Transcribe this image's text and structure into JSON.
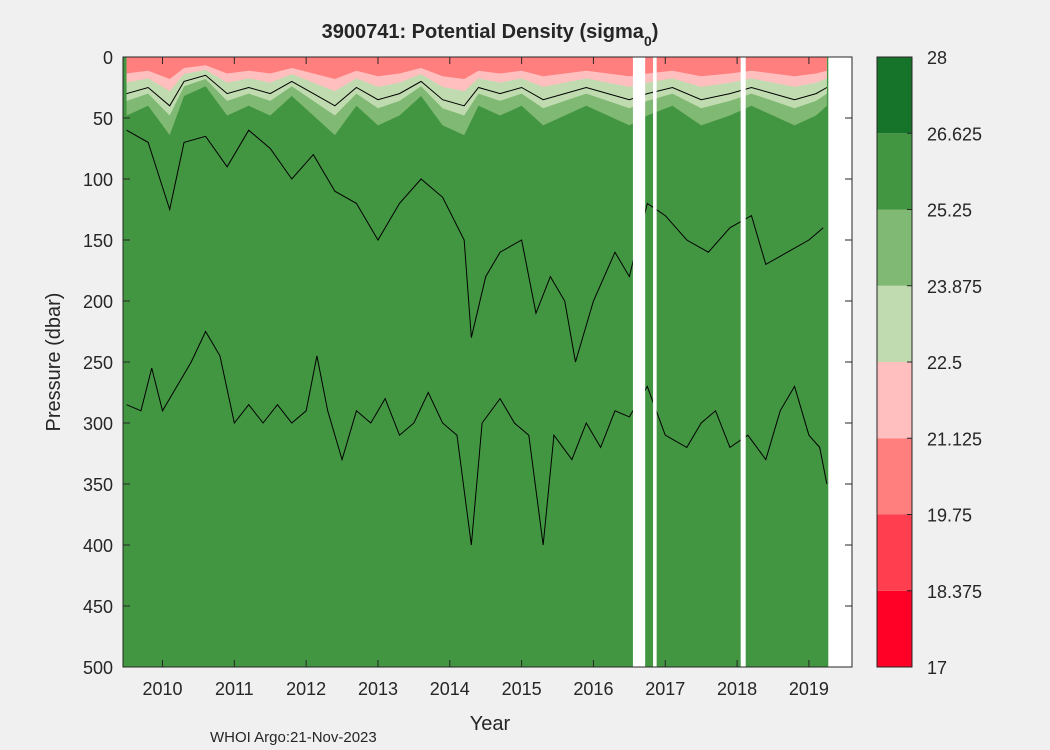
{
  "chart_data": {
    "type": "contour",
    "title": "3900741: Potential Density (sigma",
    "title_sub": "0",
    "title_end": ")",
    "xlabel": "Year",
    "ylabel": "Pressure (dbar)",
    "footer": "WHOI Argo:21-Nov-2023",
    "xlim": [
      2009.45,
      2019.6
    ],
    "ylim": [
      0,
      500
    ],
    "y_reversed": true,
    "x_ticks": [
      2010,
      2011,
      2012,
      2013,
      2014,
      2015,
      2016,
      2017,
      2018,
      2019
    ],
    "x_tick_labels": [
      "2010",
      "2011",
      "2012",
      "2013",
      "2014",
      "2015",
      "2016",
      "2017",
      "2018",
      "2019"
    ],
    "y_ticks": [
      0,
      50,
      100,
      150,
      200,
      250,
      300,
      350,
      400,
      450,
      500
    ],
    "y_tick_labels": [
      "0",
      "50",
      "100",
      "150",
      "200",
      "250",
      "300",
      "350",
      "400",
      "450",
      "500"
    ],
    "colorbar": {
      "levels": [
        17,
        18.375,
        19.75,
        21.125,
        22.5,
        23.875,
        25.25,
        26.625,
        28
      ],
      "labels": [
        "17",
        "18.375",
        "19.75",
        "21.125",
        "22.5",
        "23.875",
        "25.25",
        "26.625",
        "28"
      ],
      "colors": [
        "#ff0027",
        "#ff3f4f",
        "#ff7f7f",
        "#ffbfbf",
        "#c0dbb0",
        "#80b973",
        "#439641",
        "#16742a"
      ]
    },
    "gaps": [
      [
        2016.55,
        2016.72
      ],
      [
        2016.83,
        2016.88
      ],
      [
        2018.05,
        2018.12
      ],
      [
        2019.27,
        2019.6
      ]
    ],
    "contour_lines": [
      {
        "name": "mixed-layer-upper",
        "points": [
          [
            2009.5,
            30
          ],
          [
            2009.8,
            25
          ],
          [
            2010.1,
            40
          ],
          [
            2010.3,
            20
          ],
          [
            2010.6,
            15
          ],
          [
            2010.9,
            30
          ],
          [
            2011.2,
            25
          ],
          [
            2011.5,
            30
          ],
          [
            2011.8,
            20
          ],
          [
            2012.1,
            30
          ],
          [
            2012.4,
            40
          ],
          [
            2012.7,
            25
          ],
          [
            2013.0,
            35
          ],
          [
            2013.3,
            30
          ],
          [
            2013.6,
            20
          ],
          [
            2013.9,
            35
          ],
          [
            2014.2,
            40
          ],
          [
            2014.4,
            25
          ],
          [
            2014.7,
            30
          ],
          [
            2015.0,
            25
          ],
          [
            2015.3,
            35
          ],
          [
            2015.6,
            30
          ],
          [
            2015.9,
            25
          ],
          [
            2016.2,
            30
          ],
          [
            2016.5,
            35
          ],
          [
            2016.75,
            30
          ],
          [
            2017.1,
            25
          ],
          [
            2017.5,
            35
          ],
          [
            2017.9,
            30
          ],
          [
            2018.2,
            25
          ],
          [
            2018.5,
            30
          ],
          [
            2018.8,
            35
          ],
          [
            2019.1,
            30
          ],
          [
            2019.25,
            25
          ]
        ]
      },
      {
        "name": "thermocline-line",
        "points": [
          [
            2009.5,
            60
          ],
          [
            2009.8,
            70
          ],
          [
            2010.1,
            125
          ],
          [
            2010.3,
            70
          ],
          [
            2010.6,
            65
          ],
          [
            2010.9,
            90
          ],
          [
            2011.2,
            60
          ],
          [
            2011.5,
            75
          ],
          [
            2011.8,
            100
          ],
          [
            2012.1,
            80
          ],
          [
            2012.4,
            110
          ],
          [
            2012.7,
            120
          ],
          [
            2013.0,
            150
          ],
          [
            2013.3,
            120
          ],
          [
            2013.6,
            100
          ],
          [
            2013.9,
            115
          ],
          [
            2014.2,
            150
          ],
          [
            2014.3,
            230
          ],
          [
            2014.5,
            180
          ],
          [
            2014.7,
            160
          ],
          [
            2015.0,
            150
          ],
          [
            2015.2,
            210
          ],
          [
            2015.4,
            180
          ],
          [
            2015.6,
            200
          ],
          [
            2015.75,
            250
          ],
          [
            2016.0,
            200
          ],
          [
            2016.3,
            160
          ],
          [
            2016.5,
            180
          ],
          [
            2016.75,
            120
          ],
          [
            2017.0,
            130
          ],
          [
            2017.3,
            150
          ],
          [
            2017.6,
            160
          ],
          [
            2017.9,
            140
          ],
          [
            2018.2,
            130
          ],
          [
            2018.4,
            170
          ],
          [
            2018.7,
            160
          ],
          [
            2019.0,
            150
          ],
          [
            2019.2,
            140
          ]
        ]
      },
      {
        "name": "deep-isopycnal",
        "points": [
          [
            2009.5,
            285
          ],
          [
            2009.7,
            290
          ],
          [
            2009.85,
            255
          ],
          [
            2010.0,
            290
          ],
          [
            2010.2,
            270
          ],
          [
            2010.4,
            250
          ],
          [
            2010.6,
            225
          ],
          [
            2010.8,
            245
          ],
          [
            2011.0,
            300
          ],
          [
            2011.2,
            285
          ],
          [
            2011.4,
            300
          ],
          [
            2011.6,
            285
          ],
          [
            2011.8,
            300
          ],
          [
            2012.0,
            290
          ],
          [
            2012.15,
            245
          ],
          [
            2012.3,
            290
          ],
          [
            2012.5,
            330
          ],
          [
            2012.7,
            290
          ],
          [
            2012.9,
            300
          ],
          [
            2013.1,
            280
          ],
          [
            2013.3,
            310
          ],
          [
            2013.5,
            300
          ],
          [
            2013.7,
            275
          ],
          [
            2013.9,
            300
          ],
          [
            2014.1,
            310
          ],
          [
            2014.3,
            400
          ],
          [
            2014.45,
            300
          ],
          [
            2014.7,
            280
          ],
          [
            2014.9,
            300
          ],
          [
            2015.1,
            310
          ],
          [
            2015.3,
            400
          ],
          [
            2015.45,
            310
          ],
          [
            2015.7,
            330
          ],
          [
            2015.9,
            300
          ],
          [
            2016.1,
            320
          ],
          [
            2016.3,
            290
          ],
          [
            2016.5,
            295
          ],
          [
            2016.75,
            270
          ],
          [
            2017.0,
            310
          ],
          [
            2017.3,
            320
          ],
          [
            2017.5,
            300
          ],
          [
            2017.7,
            290
          ],
          [
            2017.9,
            320
          ],
          [
            2018.15,
            310
          ],
          [
            2018.4,
            330
          ],
          [
            2018.6,
            290
          ],
          [
            2018.8,
            270
          ],
          [
            2019.0,
            310
          ],
          [
            2019.15,
            320
          ],
          [
            2019.25,
            350
          ]
        ]
      }
    ]
  }
}
